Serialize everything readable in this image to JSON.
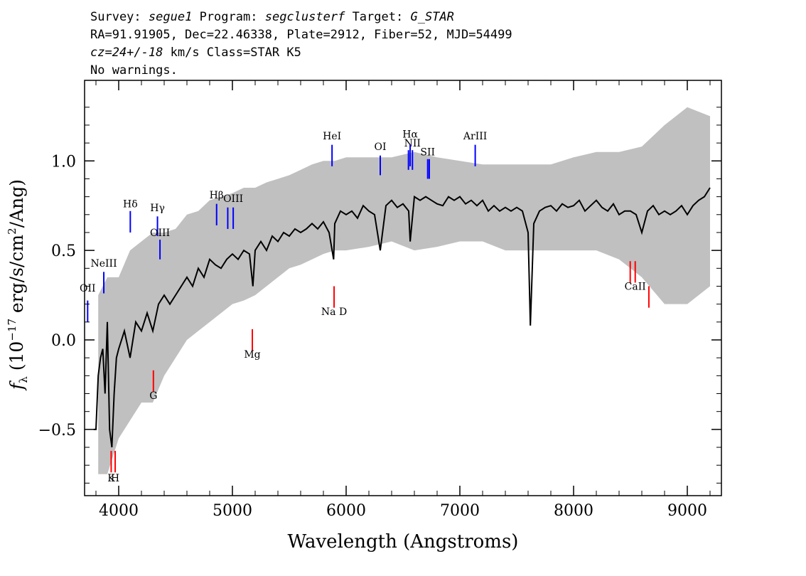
{
  "header": {
    "line1": {
      "survey_label": "Survey:",
      "survey": "segue1",
      "program_label": "Program:",
      "program": "segclusterf",
      "target_label": "Target:",
      "target": "G_STAR"
    },
    "line2": "RA=91.91905, Dec=22.46338, Plate=2912, Fiber=52, MJD=54499",
    "line3": {
      "cz": "cz=24+/-18",
      "rest": "km/s Class=STAR K5"
    },
    "line4": "No warnings."
  },
  "chart_data": {
    "type": "line",
    "title": "",
    "xlabel": "Wavelength (Angstroms)",
    "ylabel": "f_λ (10^-17 erg/s/cm²/Ang)",
    "ylabel_parts": {
      "f": "f",
      "sub": "λ",
      "pre": "(10",
      "exp": "−17",
      "mid": " erg/s/cm",
      "exp2": "2",
      "post": "/Ang)"
    },
    "xlim": [
      3700,
      9300
    ],
    "ylim": [
      -0.87,
      1.45
    ],
    "xticks": [
      4000,
      5000,
      6000,
      7000,
      8000,
      9000
    ],
    "xtick_labels": [
      "4000",
      "5000",
      "6000",
      "7000",
      "8000",
      "9000"
    ],
    "yticks": [
      -0.5,
      0.0,
      0.5,
      1.0
    ],
    "ytick_labels": [
      "−0.5",
      "0.0",
      "0.5",
      "1.0"
    ],
    "grid": false,
    "series": [
      {
        "role": "error-envelope",
        "color": "#c0c0c0",
        "x": [
          3820,
          3900,
          4000,
          4100,
          4200,
          4300,
          4400,
          4500,
          4600,
          4700,
          4800,
          4900,
          5000,
          5100,
          5200,
          5300,
          5400,
          5500,
          5600,
          5700,
          5800,
          5900,
          6000,
          6200,
          6400,
          6600,
          6800,
          7000,
          7200,
          7400,
          7600,
          7800,
          8000,
          8200,
          8400,
          8600,
          8800,
          9000,
          9200
        ],
        "upper": [
          0.25,
          0.35,
          0.35,
          0.5,
          0.55,
          0.6,
          0.6,
          0.62,
          0.7,
          0.72,
          0.78,
          0.8,
          0.82,
          0.85,
          0.85,
          0.88,
          0.9,
          0.92,
          0.95,
          0.98,
          1.0,
          1.0,
          1.02,
          1.02,
          1.02,
          1.05,
          1.02,
          1.0,
          0.98,
          0.98,
          0.98,
          0.98,
          1.02,
          1.05,
          1.05,
          1.08,
          1.2,
          1.3,
          1.25
        ],
        "lower": [
          -0.75,
          -0.75,
          -0.55,
          -0.45,
          -0.35,
          -0.35,
          -0.2,
          -0.1,
          0.0,
          0.05,
          0.1,
          0.15,
          0.2,
          0.22,
          0.25,
          0.3,
          0.35,
          0.4,
          0.42,
          0.45,
          0.48,
          0.5,
          0.5,
          0.52,
          0.55,
          0.5,
          0.52,
          0.55,
          0.55,
          0.5,
          0.5,
          0.5,
          0.5,
          0.5,
          0.45,
          0.35,
          0.2,
          0.2,
          0.3
        ]
      },
      {
        "role": "flux",
        "color": "#000000",
        "x": [
          3780,
          3800,
          3820,
          3840,
          3860,
          3880,
          3900,
          3920,
          3940,
          3960,
          3980,
          4000,
          4050,
          4100,
          4150,
          4200,
          4250,
          4300,
          4350,
          4400,
          4450,
          4500,
          4550,
          4600,
          4650,
          4700,
          4750,
          4800,
          4850,
          4900,
          4950,
          5000,
          5050,
          5100,
          5150,
          5180,
          5200,
          5250,
          5300,
          5350,
          5400,
          5450,
          5500,
          5550,
          5600,
          5650,
          5700,
          5750,
          5800,
          5850,
          5890,
          5900,
          5950,
          6000,
          6050,
          6100,
          6150,
          6200,
          6250,
          6300,
          6350,
          6400,
          6450,
          6500,
          6550,
          6563,
          6600,
          6650,
          6700,
          6750,
          6800,
          6850,
          6900,
          6950,
          7000,
          7050,
          7100,
          7150,
          7200,
          7250,
          7300,
          7350,
          7400,
          7450,
          7500,
          7550,
          7600,
          7620,
          7650,
          7700,
          7750,
          7800,
          7850,
          7900,
          7950,
          8000,
          8050,
          8100,
          8150,
          8200,
          8250,
          8300,
          8350,
          8400,
          8450,
          8500,
          8550,
          8600,
          8650,
          8700,
          8750,
          8800,
          8850,
          8900,
          8950,
          9000,
          9050,
          9100,
          9150,
          9200
        ],
        "y": [
          -0.5,
          -0.5,
          -0.2,
          -0.1,
          -0.05,
          -0.3,
          0.1,
          -0.5,
          -0.6,
          -0.3,
          -0.1,
          -0.05,
          0.05,
          -0.1,
          0.1,
          0.05,
          0.15,
          0.05,
          0.2,
          0.25,
          0.2,
          0.25,
          0.3,
          0.35,
          0.3,
          0.4,
          0.35,
          0.45,
          0.42,
          0.4,
          0.45,
          0.48,
          0.45,
          0.5,
          0.48,
          0.3,
          0.5,
          0.55,
          0.5,
          0.58,
          0.55,
          0.6,
          0.58,
          0.62,
          0.6,
          0.62,
          0.65,
          0.62,
          0.66,
          0.6,
          0.45,
          0.65,
          0.72,
          0.7,
          0.72,
          0.68,
          0.75,
          0.72,
          0.7,
          0.5,
          0.75,
          0.78,
          0.74,
          0.76,
          0.72,
          0.55,
          0.8,
          0.78,
          0.8,
          0.78,
          0.76,
          0.75,
          0.8,
          0.78,
          0.8,
          0.76,
          0.78,
          0.75,
          0.78,
          0.72,
          0.75,
          0.72,
          0.74,
          0.72,
          0.74,
          0.72,
          0.6,
          0.08,
          0.65,
          0.72,
          0.74,
          0.75,
          0.72,
          0.76,
          0.74,
          0.75,
          0.78,
          0.72,
          0.75,
          0.78,
          0.74,
          0.72,
          0.76,
          0.7,
          0.72,
          0.72,
          0.7,
          0.6,
          0.72,
          0.75,
          0.7,
          0.72,
          0.7,
          0.72,
          0.75,
          0.7,
          0.75,
          0.78,
          0.8,
          0.85
        ]
      }
    ],
    "emission_lines": [
      {
        "label": "OII",
        "x": 3727,
        "y0": 0.1,
        "y1": 0.22,
        "text_y": 0.27,
        "color": "#0000ff"
      },
      {
        "label": "NeIII",
        "x": 3869,
        "y0": 0.26,
        "y1": 0.38,
        "text_y": 0.41,
        "color": "#0000ff"
      },
      {
        "label": "Hδ",
        "x": 4102,
        "y0": 0.6,
        "y1": 0.72,
        "text_y": 0.74,
        "color": "#0000ff"
      },
      {
        "label": "Hγ",
        "x": 4341,
        "y0": 0.58,
        "y1": 0.69,
        "text_y": 0.72,
        "color": "#0000ff"
      },
      {
        "label": "OIII",
        "x": 4363,
        "y0": 0.45,
        "y1": 0.56,
        "text_y": 0.58,
        "color": "#0000ff"
      },
      {
        "label": "Hβ",
        "x": 4861,
        "y0": 0.64,
        "y1": 0.76,
        "text_y": 0.79,
        "color": "#0000ff"
      },
      {
        "label": "OIII",
        "x": 4959,
        "y0": 0.62,
        "y1": 0.74,
        "text_y": null,
        "color": "#0000ff"
      },
      {
        "label": "OIII",
        "x": 5007,
        "y0": 0.62,
        "y1": 0.74,
        "text_y": 0.77,
        "color": "#0000ff"
      },
      {
        "label": "HeI",
        "x": 5876,
        "y0": 0.97,
        "y1": 1.09,
        "text_y": 1.12,
        "color": "#0000ff"
      },
      {
        "label": "OI",
        "x": 6300,
        "y0": 0.92,
        "y1": 1.03,
        "text_y": 1.06,
        "color": "#0000ff"
      },
      {
        "label": "NII",
        "x": 6548,
        "y0": 0.95,
        "y1": 1.06,
        "text_y": null,
        "color": "#0000ff"
      },
      {
        "label": "NII",
        "x": 6583,
        "y0": 0.95,
        "y1": 1.06,
        "text_y": 1.08,
        "color": "#0000ff"
      },
      {
        "label": "Hα",
        "x": 6563,
        "y0": 0.97,
        "y1": 1.09,
        "text_y": 1.13,
        "color": "#0000ff"
      },
      {
        "label": "SII",
        "x": 6717,
        "y0": 0.9,
        "y1": 1.01,
        "text_y": 1.03,
        "color": "#0000ff"
      },
      {
        "label": "SII",
        "x": 6731,
        "y0": 0.9,
        "y1": 1.01,
        "text_y": null,
        "color": "#0000ff"
      },
      {
        "label": "ArIII",
        "x": 7135,
        "y0": 0.97,
        "y1": 1.09,
        "text_y": 1.12,
        "color": "#0000ff"
      }
    ],
    "absorption_lines": [
      {
        "label": "K",
        "x": 3934,
        "y0": -0.74,
        "y1": -0.62,
        "text_y": -0.79,
        "color": "#ff0000"
      },
      {
        "label": "H",
        "x": 3969,
        "y0": -0.74,
        "y1": -0.62,
        "text_y": -0.79,
        "color": "#ff0000"
      },
      {
        "label": "G",
        "x": 4305,
        "y0": -0.29,
        "y1": -0.17,
        "text_y": -0.33,
        "color": "#ff0000"
      },
      {
        "label": "Mg",
        "x": 5175,
        "y0": -0.06,
        "y1": 0.06,
        "text_y": -0.1,
        "color": "#ff0000"
      },
      {
        "label": "Na D",
        "x": 5894,
        "y0": 0.18,
        "y1": 0.3,
        "text_y": 0.14,
        "color": "#ff0000"
      },
      {
        "label": "CaII",
        "x": 8498,
        "y0": 0.32,
        "y1": 0.44,
        "text_y": null,
        "color": "#ff0000"
      },
      {
        "label": "CaII",
        "x": 8542,
        "y0": 0.32,
        "y1": 0.44,
        "text_y": 0.28,
        "color": "#ff0000"
      },
      {
        "label": "CaII",
        "x": 8662,
        "y0": 0.18,
        "y1": 0.3,
        "text_y": null,
        "color": "#ff0000"
      }
    ]
  }
}
